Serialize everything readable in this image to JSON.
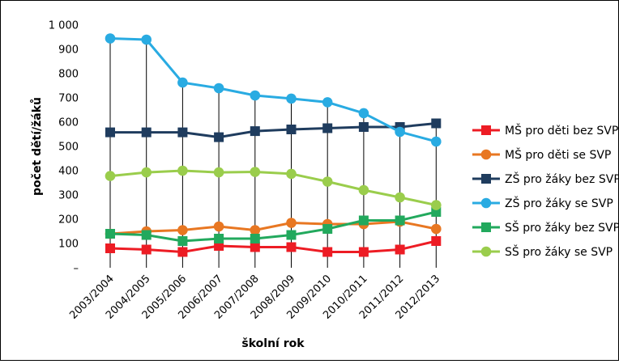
{
  "chart_data": {
    "type": "line",
    "title": "",
    "xlabel": "školní rok",
    "ylabel": "počet dětí/žáků",
    "ylim": [
      0,
      1000
    ],
    "y_ticks": [
      0,
      100,
      200,
      300,
      400,
      500,
      600,
      700,
      800,
      900,
      1000
    ],
    "y_tick_labels": [
      "–",
      "100",
      "200",
      "300",
      "400",
      "500",
      "600",
      "700",
      "800",
      "900",
      "1 000"
    ],
    "grid": "vertical drop lines",
    "legend_position": "right",
    "categories": [
      "2003/2004",
      "2004/2005",
      "2005/2006",
      "2006/2007",
      "2007/2008",
      "2008/2009",
      "2009/2010",
      "2010/2011",
      "2011/2012",
      "2012/2013"
    ],
    "series": [
      {
        "name": "MŠ pro děti bez SVP",
        "color": "#ED1C24",
        "marker": "square",
        "values": [
          80,
          75,
          65,
          90,
          85,
          85,
          65,
          65,
          75,
          110
        ]
      },
      {
        "name": "MŠ pro děti se SVP",
        "color": "#E87722",
        "marker": "circle",
        "values": [
          140,
          150,
          155,
          170,
          155,
          185,
          180,
          180,
          190,
          160
        ]
      },
      {
        "name": "ZŠ pro žáky bez SVP",
        "color": "#1F3C5E",
        "marker": "square",
        "values": [
          558,
          558,
          558,
          538,
          563,
          570,
          575,
          580,
          580,
          595
        ]
      },
      {
        "name": "ZŠ pro žáky se SVP",
        "color": "#29ABE2",
        "marker": "circle",
        "values": [
          945,
          940,
          763,
          740,
          710,
          697,
          682,
          637,
          560,
          520
        ]
      },
      {
        "name": "SŠ pro žáky bez SVP",
        "color": "#22A95D",
        "marker": "square",
        "values": [
          140,
          135,
          110,
          120,
          120,
          135,
          160,
          195,
          195,
          230
        ]
      },
      {
        "name": "SŠ pro žáky se SVP",
        "color": "#9ACD4C",
        "marker": "circle",
        "values": [
          378,
          393,
          400,
          393,
          395,
          387,
          355,
          320,
          290,
          258
        ]
      }
    ]
  }
}
